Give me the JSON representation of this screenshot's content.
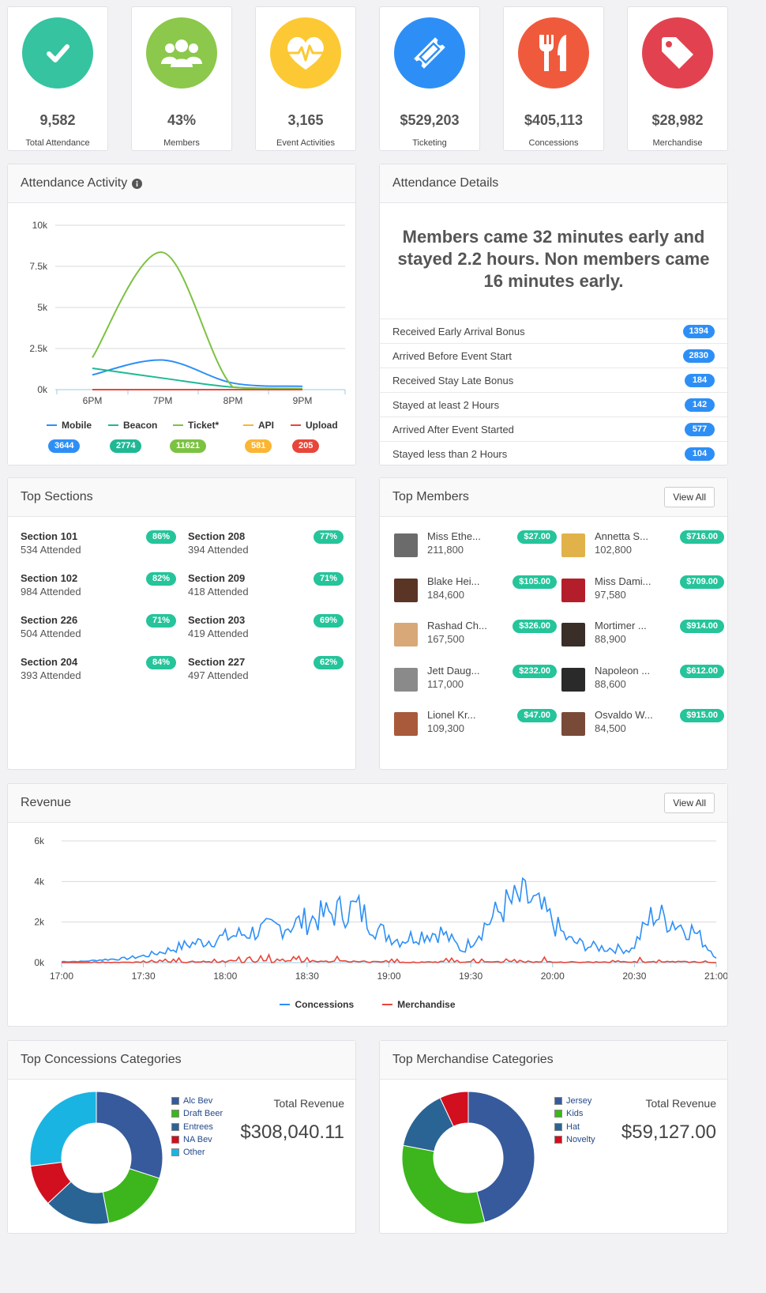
{
  "stats": [
    {
      "value": "9,582",
      "label": "Total Attendance",
      "color": "#35c3a0",
      "icon": "check-icon"
    },
    {
      "value": "43%",
      "label": "Members",
      "color": "#8cc84b",
      "icon": "users-icon"
    },
    {
      "value": "3,165",
      "label": "Event Activities",
      "color": "#fcc934",
      "icon": "heartbeat-icon"
    },
    {
      "value": "$529,203",
      "label": "Ticketing",
      "color": "#2d8ff6",
      "icon": "ticket-icon"
    },
    {
      "value": "$405,113",
      "label": "Concessions",
      "color": "#f05a3c",
      "icon": "utensils-icon"
    },
    {
      "value": "$28,982",
      "label": "Merchandise",
      "color": "#e2424f",
      "icon": "tag-icon"
    }
  ],
  "attendance_activity": {
    "title": "Attendance Activity",
    "legend": [
      {
        "name": "Mobile",
        "color": "#2d8ff6",
        "count": "3644"
      },
      {
        "name": "Beacon",
        "color": "#20b894",
        "count": "2774"
      },
      {
        "name": "Ticket*",
        "color": "#7cc242",
        "count": "11621"
      },
      {
        "name": "API",
        "color": "#fbb533",
        "count": "581"
      },
      {
        "name": "Upload",
        "color": "#e8463a",
        "count": "205"
      }
    ]
  },
  "attendance_details": {
    "title": "Attendance Details",
    "headline": "Members came 32 minutes early and stayed 2.2 hours. Non members came 16 minutes early.",
    "rows": [
      {
        "label": "Received Early Arrival Bonus",
        "count": "1394"
      },
      {
        "label": "Arrived Before Event Start",
        "count": "2830"
      },
      {
        "label": "Received Stay Late Bonus",
        "count": "184"
      },
      {
        "label": "Stayed at least 2 Hours",
        "count": "142"
      },
      {
        "label": "Arrived After Event Started",
        "count": "577"
      },
      {
        "label": "Stayed less than 2 Hours",
        "count": "104"
      }
    ]
  },
  "top_sections": {
    "title": "Top Sections",
    "items": [
      {
        "name": "Section 101",
        "sub": "534 Attended",
        "pct": "86%"
      },
      {
        "name": "Section 208",
        "sub": "394 Attended",
        "pct": "77%"
      },
      {
        "name": "Section 102",
        "sub": "984 Attended",
        "pct": "82%"
      },
      {
        "name": "Section 209",
        "sub": "418 Attended",
        "pct": "71%"
      },
      {
        "name": "Section 226",
        "sub": "504 Attended",
        "pct": "71%"
      },
      {
        "name": "Section 203",
        "sub": "419 Attended",
        "pct": "69%"
      },
      {
        "name": "Section 204",
        "sub": "393 Attended",
        "pct": "84%"
      },
      {
        "name": "Section 227",
        "sub": "497 Attended",
        "pct": "62%"
      }
    ]
  },
  "top_members": {
    "title": "Top Members",
    "view_all": "View All",
    "items": [
      {
        "name": "Miss Ethe...",
        "sub": "211,800",
        "amount": "$27.00",
        "avatar": "#6b6b6b"
      },
      {
        "name": "Annetta S...",
        "sub": "102,800",
        "amount": "$716.00",
        "avatar": "#e2b24a"
      },
      {
        "name": "Blake Hei...",
        "sub": "184,600",
        "amount": "$105.00",
        "avatar": "#5a3526"
      },
      {
        "name": "Miss Dami...",
        "sub": "97,580",
        "amount": "$709.00",
        "avatar": "#b31e2a"
      },
      {
        "name": "Rashad Ch...",
        "sub": "167,500",
        "amount": "$326.00",
        "avatar": "#d8a878"
      },
      {
        "name": "Mortimer ...",
        "sub": "88,900",
        "amount": "$914.00",
        "avatar": "#3a2e28"
      },
      {
        "name": "Jett Daug...",
        "sub": "117,000",
        "amount": "$232.00",
        "avatar": "#8a8a8a"
      },
      {
        "name": "Napoleon ...",
        "sub": "88,600",
        "amount": "$612.00",
        "avatar": "#2a2a2a"
      },
      {
        "name": "Lionel Kr...",
        "sub": "109,300",
        "amount": "$47.00",
        "avatar": "#a85a3a"
      },
      {
        "name": "Osvaldo W...",
        "sub": "84,500",
        "amount": "$915.00",
        "avatar": "#7a4a38"
      }
    ]
  },
  "revenue": {
    "title": "Revenue",
    "view_all": "View All",
    "legend": [
      {
        "name": "Concessions",
        "color": "#2d8ff6"
      },
      {
        "name": "Merchandise",
        "color": "#e8463a"
      }
    ]
  },
  "top_concessions": {
    "title": "Top Concessions Categories",
    "total_label": "Total Revenue",
    "total_value": "$308,040.11"
  },
  "top_merchandise": {
    "title": "Top Merchandise Categories",
    "total_label": "Total Revenue",
    "total_value": "$59,127.00"
  },
  "colors": {
    "pill_blue": "#2d8ff6",
    "pill_green": "#25c49a"
  },
  "chart_data": [
    {
      "type": "line",
      "ylabel": "",
      "ylim": [
        0,
        10000
      ],
      "yticks": [
        "0k",
        "2.5k",
        "5k",
        "7.5k",
        "10k"
      ],
      "xticks": [
        "6PM",
        "7PM",
        "8PM",
        "9PM"
      ],
      "x": [
        0,
        1,
        2,
        3
      ],
      "series": [
        {
          "name": "Mobile",
          "color": "#2d8ff6",
          "values": [
            900,
            1800,
            400,
            200
          ]
        },
        {
          "name": "Beacon",
          "color": "#20b894",
          "values": [
            1300,
            700,
            150,
            60
          ]
        },
        {
          "name": "Ticket*",
          "color": "#7cc242",
          "values": [
            1950,
            8350,
            150,
            50
          ]
        },
        {
          "name": "API",
          "color": "#fbb533",
          "values": [
            0,
            0,
            0,
            0
          ]
        },
        {
          "name": "Upload",
          "color": "#e8463a",
          "values": [
            0,
            0,
            0,
            0
          ]
        }
      ],
      "grid": true,
      "legend": "bottom"
    },
    {
      "type": "line",
      "ylim": [
        0,
        6000
      ],
      "yticks": [
        "0k",
        "2k",
        "4k",
        "6k"
      ],
      "xticks": [
        "17:00",
        "17:30",
        "18:00",
        "18:30",
        "19:00",
        "19:30",
        "20:00",
        "20:30",
        "21:00"
      ],
      "series": [
        {
          "name": "Concessions",
          "color": "#2d8ff6",
          "values": [
            50,
            60,
            150,
            200,
            350,
            600,
            900,
            1100,
            1300,
            1500,
            1700,
            1900,
            2200,
            2500,
            2700,
            1600,
            1100,
            1400,
            1500,
            600,
            1800,
            2800,
            3200,
            2300,
            1100,
            800,
            700,
            650,
            2400,
            2000,
            1500,
            300
          ]
        },
        {
          "name": "Merchandise",
          "color": "#e8463a",
          "values": [
            20,
            30,
            60,
            80,
            150,
            200,
            250,
            300,
            320,
            340,
            330,
            350,
            380,
            300,
            360,
            250,
            150,
            120,
            200,
            180,
            250,
            260,
            300,
            220,
            150,
            160,
            170,
            200,
            250,
            220,
            200,
            100
          ]
        }
      ],
      "grid": true,
      "legend": "bottom"
    },
    {
      "type": "pie",
      "title": "",
      "categories": [
        "Alc Bev",
        "Draft Beer",
        "Entrees",
        "NA Bev",
        "Other"
      ],
      "values": [
        30,
        17,
        16,
        10,
        27
      ],
      "colors": [
        "#365a9c",
        "#3cb61c",
        "#2a6494",
        "#d20f1e",
        "#1ab4e2"
      ]
    },
    {
      "type": "pie",
      "title": "",
      "categories": [
        "Jersey",
        "Kids",
        "Hat",
        "Novelty"
      ],
      "values": [
        46,
        32,
        15,
        7
      ],
      "colors": [
        "#365a9c",
        "#3cb61c",
        "#2a6494",
        "#d20f1e"
      ]
    }
  ]
}
